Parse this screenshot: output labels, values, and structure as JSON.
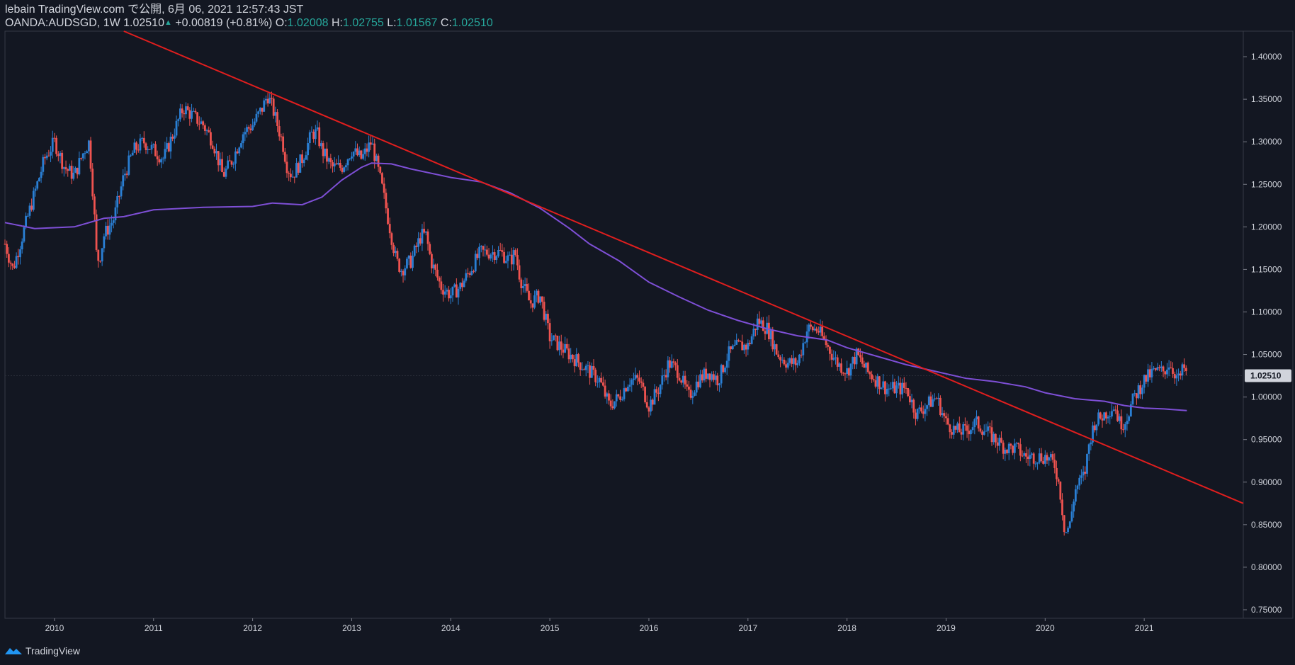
{
  "header": {
    "publisher": "lebain TradingView.com で公開, 6月 06, 2021 12:57:43 JST",
    "symbol": "OANDA:AUDSGD, 1W",
    "last": "1.02510",
    "change": "+0.00819 (+0.81%)",
    "open_label": "O:",
    "open": "1.02008",
    "high_label": "H:",
    "high": "1.02755",
    "low_label": "L:",
    "low": "1.01567",
    "close_label": "C:",
    "close": "1.02510"
  },
  "footer": {
    "brand": "TradingView",
    "logo_icon": "tradingview-logo-icon"
  },
  "colors": {
    "background": "#131722",
    "up": "#2a7fd4",
    "down": "#ef5350",
    "trendline": "#e01e1e",
    "moving_average": "#7e4fd6",
    "text": "#d1d4dc",
    "badge_text": "#131722"
  },
  "chart_data": {
    "type": "candlestick",
    "symbol": "OANDA:AUDSGD",
    "interval": "1W",
    "ylim": [
      0.74,
      1.43
    ],
    "xlim": [
      2009.5,
      2022.0
    ],
    "y_ticks": [
      "1.40000",
      "1.35000",
      "1.30000",
      "1.25000",
      "1.20000",
      "1.15000",
      "1.10000",
      "1.05000",
      "1.00000",
      "0.95000",
      "0.90000",
      "0.85000",
      "0.80000",
      "0.75000"
    ],
    "x_ticks": [
      "2010",
      "2011",
      "2012",
      "2013",
      "2014",
      "2015",
      "2016",
      "2017",
      "2018",
      "2019",
      "2020",
      "2021"
    ],
    "last_price": "1.02510",
    "price_path": [
      [
        2009.5,
        1.18
      ],
      [
        2009.58,
        1.15
      ],
      [
        2009.75,
        1.22
      ],
      [
        2009.9,
        1.28
      ],
      [
        2010.0,
        1.3
      ],
      [
        2010.1,
        1.27
      ],
      [
        2010.2,
        1.26
      ],
      [
        2010.3,
        1.29
      ],
      [
        2010.35,
        1.3
      ],
      [
        2010.4,
        1.22
      ],
      [
        2010.42,
        1.17
      ],
      [
        2010.45,
        1.16
      ],
      [
        2010.5,
        1.19
      ],
      [
        2010.6,
        1.21
      ],
      [
        2010.7,
        1.26
      ],
      [
        2010.8,
        1.29
      ],
      [
        2010.9,
        1.3
      ],
      [
        2011.0,
        1.29
      ],
      [
        2011.1,
        1.28
      ],
      [
        2011.2,
        1.31
      ],
      [
        2011.3,
        1.34
      ],
      [
        2011.4,
        1.33
      ],
      [
        2011.5,
        1.32
      ],
      [
        2011.6,
        1.3
      ],
      [
        2011.7,
        1.26
      ],
      [
        2011.8,
        1.28
      ],
      [
        2011.9,
        1.31
      ],
      [
        2012.0,
        1.32
      ],
      [
        2012.1,
        1.34
      ],
      [
        2012.15,
        1.355
      ],
      [
        2012.2,
        1.34
      ],
      [
        2012.3,
        1.3
      ],
      [
        2012.35,
        1.27
      ],
      [
        2012.4,
        1.26
      ],
      [
        2012.5,
        1.28
      ],
      [
        2012.6,
        1.31
      ],
      [
        2012.65,
        1.31
      ],
      [
        2012.7,
        1.29
      ],
      [
        2012.8,
        1.27
      ],
      [
        2012.9,
        1.27
      ],
      [
        2013.0,
        1.29
      ],
      [
        2013.1,
        1.28
      ],
      [
        2013.2,
        1.3
      ],
      [
        2013.3,
        1.25
      ],
      [
        2013.35,
        1.22
      ],
      [
        2013.4,
        1.19
      ],
      [
        2013.45,
        1.16
      ],
      [
        2013.5,
        1.15
      ],
      [
        2013.6,
        1.16
      ],
      [
        2013.7,
        1.19
      ],
      [
        2013.75,
        1.19
      ],
      [
        2013.8,
        1.16
      ],
      [
        2013.9,
        1.13
      ],
      [
        2014.0,
        1.12
      ],
      [
        2014.1,
        1.13
      ],
      [
        2014.2,
        1.15
      ],
      [
        2014.3,
        1.17
      ],
      [
        2014.4,
        1.17
      ],
      [
        2014.5,
        1.17
      ],
      [
        2014.6,
        1.16
      ],
      [
        2014.65,
        1.17
      ],
      [
        2014.7,
        1.14
      ],
      [
        2014.8,
        1.11
      ],
      [
        2014.9,
        1.12
      ],
      [
        2015.0,
        1.07
      ],
      [
        2015.1,
        1.06
      ],
      [
        2015.2,
        1.05
      ],
      [
        2015.3,
        1.04
      ],
      [
        2015.4,
        1.03
      ],
      [
        2015.5,
        1.02
      ],
      [
        2015.6,
        0.99
      ],
      [
        2015.7,
        1.0
      ],
      [
        2015.8,
        1.02
      ],
      [
        2015.9,
        1.02
      ],
      [
        2016.0,
        0.99
      ],
      [
        2016.1,
        1.01
      ],
      [
        2016.2,
        1.04
      ],
      [
        2016.3,
        1.03
      ],
      [
        2016.4,
        1.0
      ],
      [
        2016.5,
        1.02
      ],
      [
        2016.6,
        1.03
      ],
      [
        2016.7,
        1.02
      ],
      [
        2016.8,
        1.05
      ],
      [
        2016.9,
        1.06
      ],
      [
        2017.0,
        1.06
      ],
      [
        2017.1,
        1.09
      ],
      [
        2017.2,
        1.08
      ],
      [
        2017.3,
        1.05
      ],
      [
        2017.4,
        1.04
      ],
      [
        2017.5,
        1.04
      ],
      [
        2017.6,
        1.08
      ],
      [
        2017.7,
        1.08
      ],
      [
        2017.8,
        1.06
      ],
      [
        2017.9,
        1.04
      ],
      [
        2018.0,
        1.03
      ],
      [
        2018.1,
        1.05
      ],
      [
        2018.2,
        1.03
      ],
      [
        2018.3,
        1.02
      ],
      [
        2018.4,
        1.01
      ],
      [
        2018.5,
        1.01
      ],
      [
        2018.6,
        1.01
      ],
      [
        2018.7,
        0.98
      ],
      [
        2018.8,
        0.99
      ],
      [
        2018.9,
        1.0
      ],
      [
        2019.0,
        0.97
      ],
      [
        2019.1,
        0.96
      ],
      [
        2019.2,
        0.96
      ],
      [
        2019.3,
        0.97
      ],
      [
        2019.4,
        0.96
      ],
      [
        2019.5,
        0.95
      ],
      [
        2019.6,
        0.94
      ],
      [
        2019.7,
        0.94
      ],
      [
        2019.8,
        0.93
      ],
      [
        2019.9,
        0.93
      ],
      [
        2020.0,
        0.93
      ],
      [
        2020.1,
        0.92
      ],
      [
        2020.15,
        0.89
      ],
      [
        2020.2,
        0.84
      ],
      [
        2020.25,
        0.85
      ],
      [
        2020.3,
        0.89
      ],
      [
        2020.4,
        0.91
      ],
      [
        2020.45,
        0.95
      ],
      [
        2020.5,
        0.97
      ],
      [
        2020.6,
        0.98
      ],
      [
        2020.7,
        0.99
      ],
      [
        2020.75,
        0.97
      ],
      [
        2020.8,
        0.97
      ],
      [
        2020.9,
        1.0
      ],
      [
        2021.0,
        1.02
      ],
      [
        2021.1,
        1.03
      ],
      [
        2021.2,
        1.03
      ],
      [
        2021.25,
        1.04
      ],
      [
        2021.3,
        1.03
      ],
      [
        2021.35,
        1.02
      ],
      [
        2021.4,
        1.035
      ],
      [
        2021.43,
        1.025
      ]
    ],
    "moving_average": [
      [
        2009.5,
        1.205
      ],
      [
        2009.8,
        1.198
      ],
      [
        2010.2,
        1.2
      ],
      [
        2010.5,
        1.21
      ],
      [
        2010.7,
        1.212
      ],
      [
        2011.0,
        1.22
      ],
      [
        2011.5,
        1.223
      ],
      [
        2012.0,
        1.224
      ],
      [
        2012.2,
        1.228
      ],
      [
        2012.5,
        1.226
      ],
      [
        2012.7,
        1.235
      ],
      [
        2012.9,
        1.255
      ],
      [
        2013.1,
        1.27
      ],
      [
        2013.2,
        1.275
      ],
      [
        2013.4,
        1.274
      ],
      [
        2013.6,
        1.268
      ],
      [
        2014.0,
        1.258
      ],
      [
        2014.3,
        1.253
      ],
      [
        2014.6,
        1.24
      ],
      [
        2014.9,
        1.222
      ],
      [
        2015.2,
        1.198
      ],
      [
        2015.4,
        1.18
      ],
      [
        2015.7,
        1.16
      ],
      [
        2016.0,
        1.135
      ],
      [
        2016.3,
        1.118
      ],
      [
        2016.6,
        1.102
      ],
      [
        2016.9,
        1.09
      ],
      [
        2017.2,
        1.08
      ],
      [
        2017.5,
        1.072
      ],
      [
        2017.8,
        1.067
      ],
      [
        2018.0,
        1.058
      ],
      [
        2018.3,
        1.048
      ],
      [
        2018.6,
        1.038
      ],
      [
        2018.9,
        1.03
      ],
      [
        2019.2,
        1.022
      ],
      [
        2019.5,
        1.018
      ],
      [
        2019.8,
        1.012
      ],
      [
        2020.0,
        1.005
      ],
      [
        2020.3,
        0.998
      ],
      [
        2020.6,
        0.995
      ],
      [
        2020.8,
        0.99
      ],
      [
        2021.0,
        0.987
      ],
      [
        2021.2,
        0.986
      ],
      [
        2021.43,
        0.984
      ]
    ],
    "trendline": [
      [
        2010.7,
        1.43
      ],
      [
        2022.0,
        0.875
      ]
    ]
  }
}
